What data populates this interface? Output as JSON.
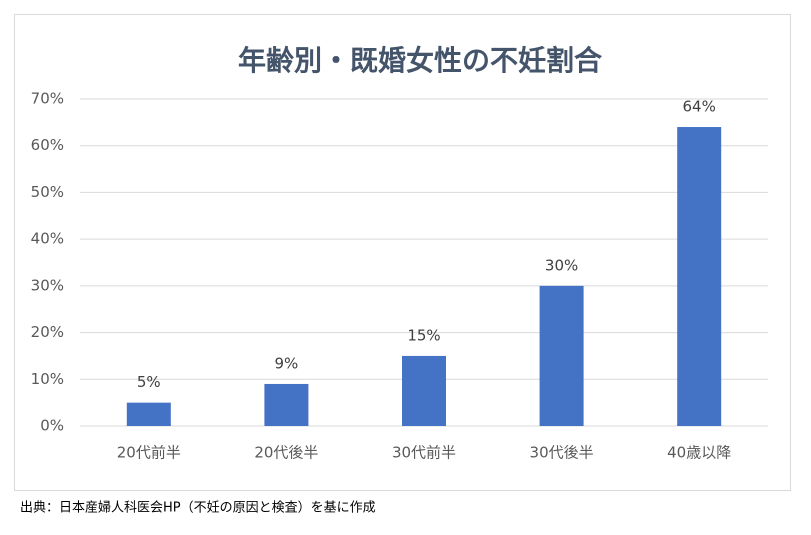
{
  "chart_data": {
    "type": "bar",
    "title": "年齢別・既婚女性の不妊割合",
    "categories": [
      "20代前半",
      "20代後半",
      "30代前半",
      "30代後半",
      "40歳以降"
    ],
    "values": [
      5,
      9,
      15,
      30,
      64
    ],
    "value_labels": [
      "5%",
      "9%",
      "15%",
      "30%",
      "64%"
    ],
    "color": "#4472c4",
    "ylim": [
      0,
      70
    ],
    "yticks": [
      {
        "value": 0,
        "label": "0%"
      },
      {
        "value": 10,
        "label": "10%"
      },
      {
        "value": 20,
        "label": "20%"
      },
      {
        "value": 30,
        "label": "30%"
      },
      {
        "value": 40,
        "label": "40%"
      },
      {
        "value": 50,
        "label": "50%"
      },
      {
        "value": 60,
        "label": "60%"
      },
      {
        "value": 70,
        "label": "70%"
      }
    ],
    "grid": true
  },
  "source": "出典：日本産婦人科医会HP（不妊の原因と検査）を基に作成"
}
